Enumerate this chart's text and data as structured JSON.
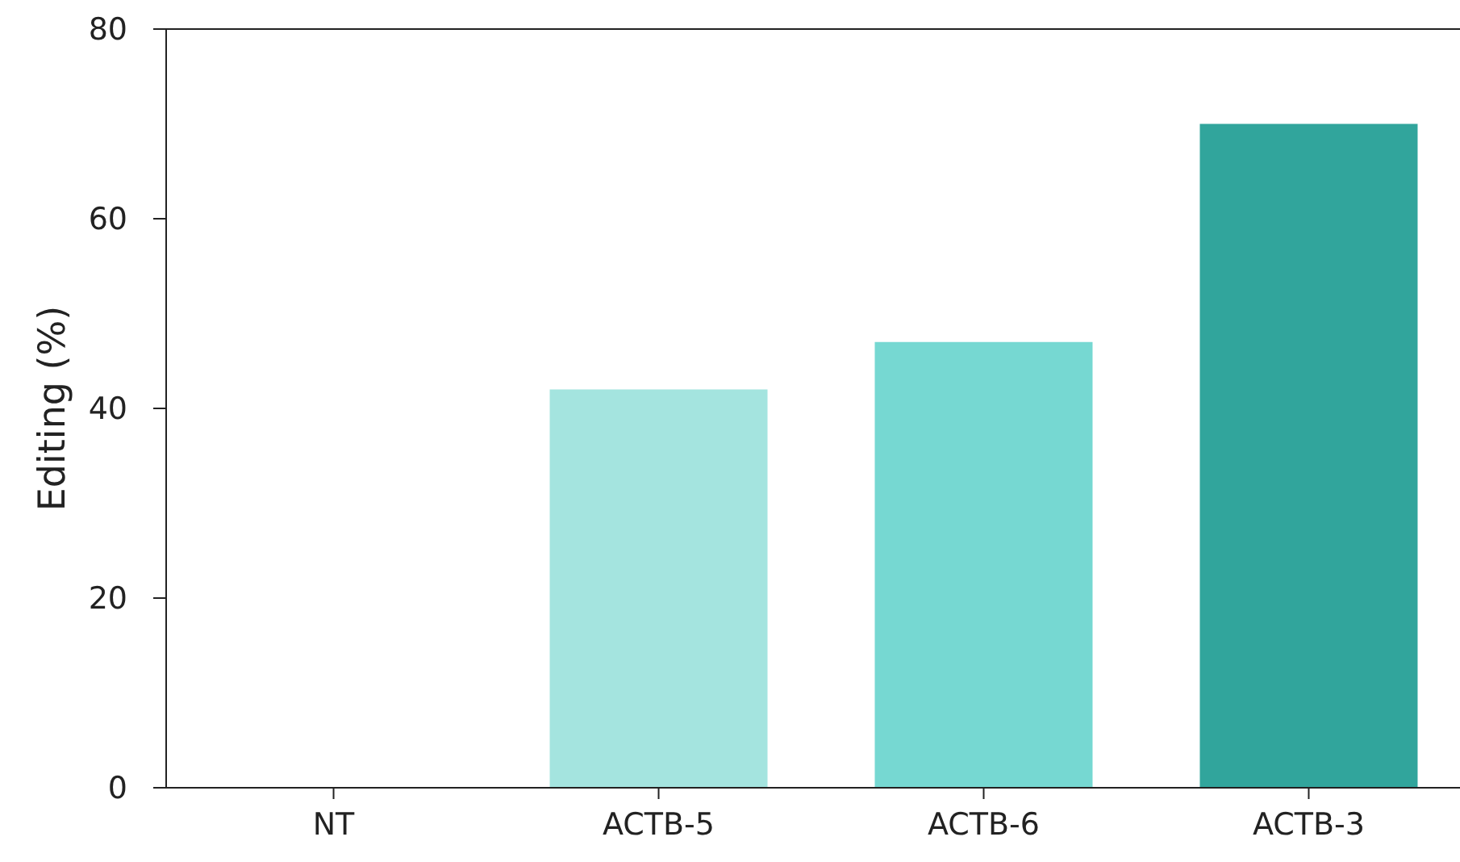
{
  "chart_data": {
    "type": "bar",
    "ylabel": "Editing (%)",
    "categories": [
      "NT",
      "ACTB-5",
      "ACTB-6",
      "ACTB-3"
    ],
    "values": [
      0,
      42,
      47,
      70
    ],
    "colors": [
      "#a4e4df",
      "#a4e4df",
      "#76d8d2",
      "#31a59c"
    ],
    "ylim": [
      0,
      80
    ],
    "yticks": [
      0,
      20,
      40,
      60,
      80
    ],
    "grid": false
  }
}
